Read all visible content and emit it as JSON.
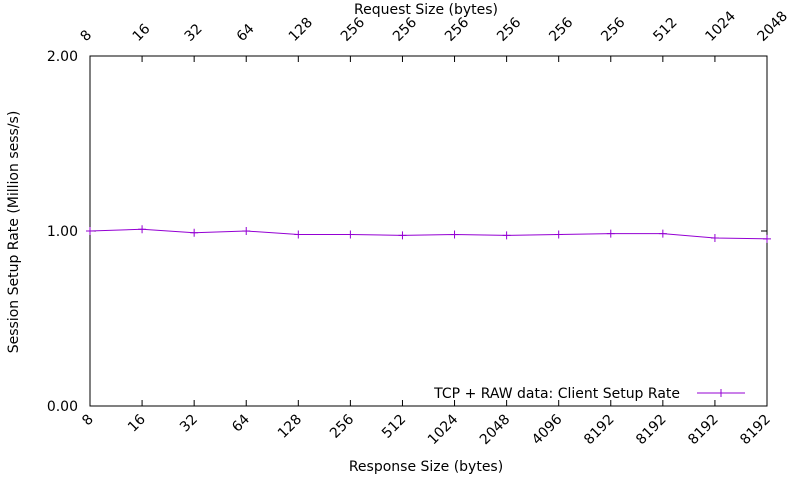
{
  "chart_data": {
    "type": "line",
    "title": "",
    "xlabel": "Response Size (bytes)",
    "x2label": "Request Size (bytes)",
    "ylabel": "Session Setup Rate (Million sess/s)",
    "ylim": [
      0,
      2
    ],
    "yticks": [
      "0.00",
      "1.00",
      "2.00"
    ],
    "categories": [
      "8",
      "16",
      "32",
      "64",
      "128",
      "256",
      "512",
      "1024",
      "2048",
      "4096",
      "8192",
      "8192",
      "8192",
      "8192"
    ],
    "top_categories": [
      "8",
      "16",
      "32",
      "64",
      "128",
      "256",
      "256",
      "256",
      "256",
      "256",
      "256",
      "512",
      "1024",
      "2048"
    ],
    "series": [
      {
        "name": "TCP + RAW data: Client Setup Rate",
        "color": "#9400d3",
        "values": [
          1.0,
          1.01,
          0.99,
          1.0,
          0.98,
          0.98,
          0.975,
          0.98,
          0.975,
          0.98,
          0.985,
          0.985,
          0.96,
          0.955
        ]
      }
    ],
    "grid": false,
    "legend_position": "bottom-right"
  }
}
